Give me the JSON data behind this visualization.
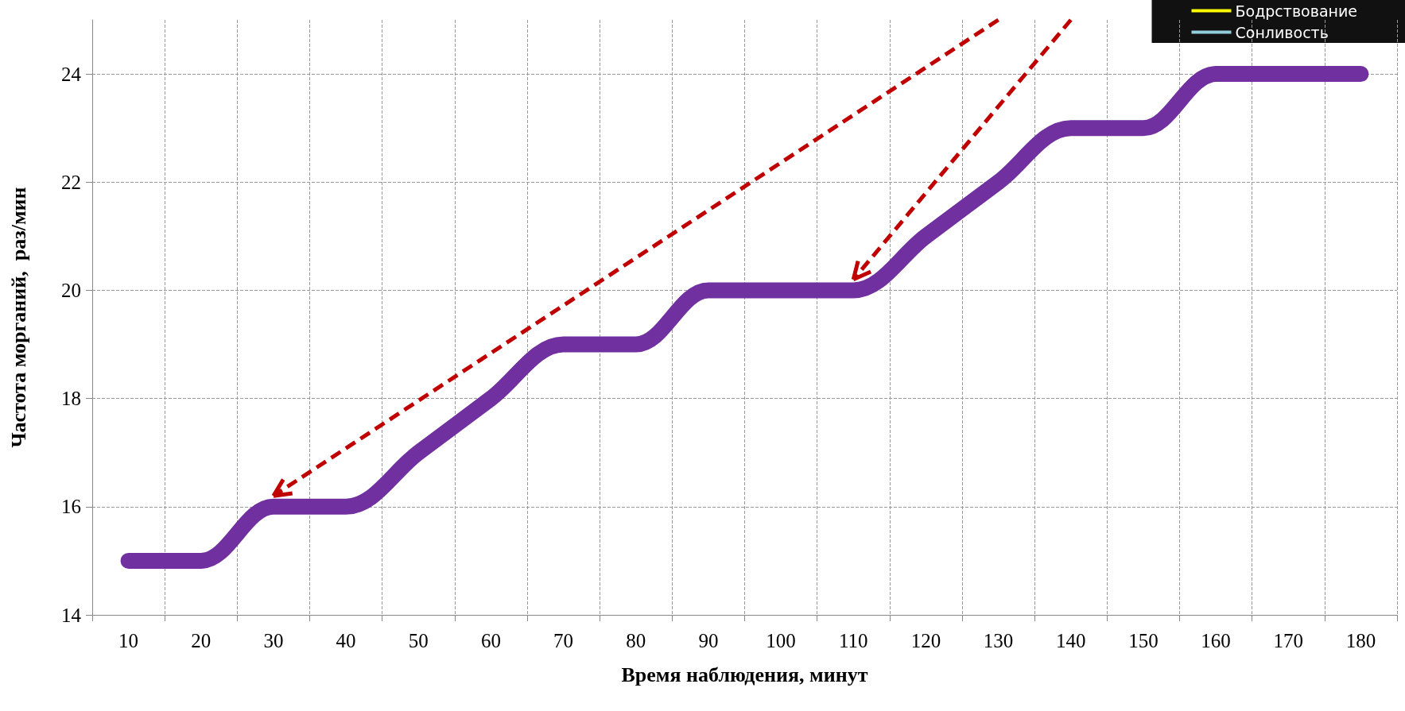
{
  "chart_data": {
    "type": "line",
    "xlabel": "Время наблюдения, минут",
    "ylabel": "Частота морганий,  раз/мин",
    "categories": [
      "10",
      "20",
      "30",
      "40",
      "50",
      "60",
      "70",
      "80",
      "90",
      "100",
      "110",
      "120",
      "130",
      "140",
      "150",
      "160",
      "170",
      "180"
    ],
    "series": [
      {
        "color": "#7030a0",
        "values": [
          15,
          15,
          16,
          16,
          17,
          18,
          19,
          19,
          20,
          20,
          20,
          21,
          22,
          23,
          23,
          24,
          24,
          24
        ]
      },
      {
        "name": "Бодрствование",
        "color": "#ffff00",
        "values": [
          null,
          null,
          null,
          null,
          null,
          null,
          null,
          null,
          null,
          null,
          null,
          null,
          null,
          null,
          null,
          null,
          null,
          null
        ]
      },
      {
        "name": "Сонливость",
        "color": "#92cddc",
        "values": [
          null,
          null,
          null,
          null,
          null,
          null,
          null,
          null,
          null,
          null,
          null,
          null,
          null,
          null,
          null,
          null,
          null,
          null
        ]
      }
    ],
    "ylim": [
      14,
      25
    ],
    "yticks": [
      14,
      16,
      18,
      20,
      22,
      24
    ],
    "grid": true,
    "legend": "top right",
    "line_style": "solid"
  }
}
